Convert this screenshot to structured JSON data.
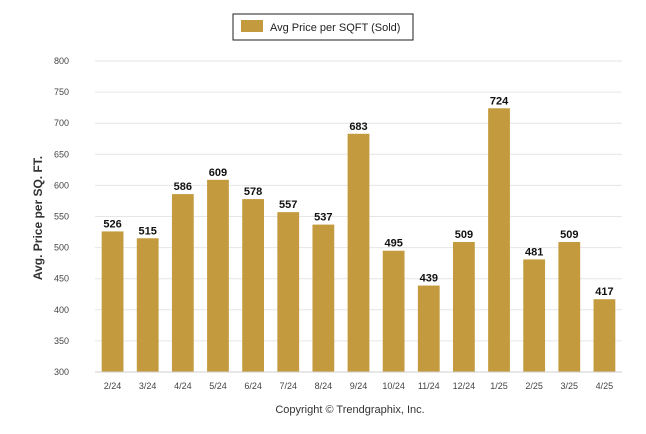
{
  "chart_data": {
    "type": "bar",
    "categories": [
      "2/24",
      "3/24",
      "4/24",
      "5/24",
      "6/24",
      "7/24",
      "8/24",
      "9/24",
      "10/24",
      "11/24",
      "12/24",
      "1/25",
      "2/25",
      "3/25",
      "4/25"
    ],
    "series": [
      {
        "name": "Avg Price per SQFT (Sold)",
        "values": [
          526,
          515,
          586,
          609,
          578,
          557,
          537,
          683,
          495,
          439,
          509,
          724,
          481,
          509,
          417
        ],
        "color": "#c49a3e"
      }
    ],
    "ylabel": "Avg. Price per SQ. FT.",
    "ylim": [
      300,
      800
    ],
    "yticks": [
      300,
      350,
      400,
      450,
      500,
      550,
      600,
      650,
      700,
      750,
      800
    ],
    "grid": true,
    "legend_position": "top-center",
    "data_labels": true
  },
  "footer": {
    "text": "Copyright © Trendgraphix, Inc."
  }
}
